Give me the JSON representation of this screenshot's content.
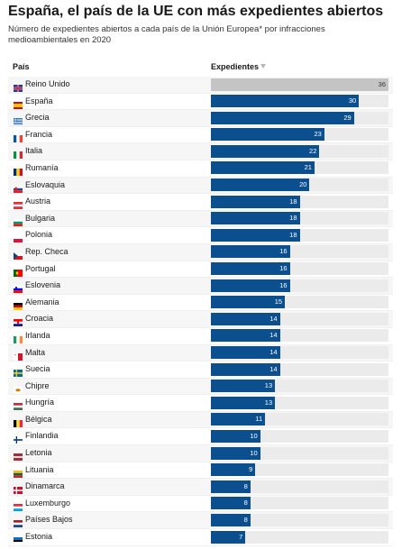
{
  "title": "España, el país de la UE con más expedientes abiertos",
  "subtitle": "Número de expedientes abiertos a cada país de la Unión Europea* por infracciones medioambientales en 2020",
  "header": {
    "country": "País",
    "value": "Expedientes"
  },
  "colors": {
    "bar": "#0c4f8f",
    "first_bar": "#c4c4c4",
    "track": "#ebebeb"
  },
  "chart_data": {
    "type": "bar",
    "orientation": "horizontal",
    "categories": [
      "Reino Unido",
      "España",
      "Grecia",
      "Francia",
      "Italia",
      "Rumanía",
      "Eslovaquia",
      "Austria",
      "Bulgaria",
      "Polonia",
      "Rep. Checa",
      "Portugal",
      "Eslovenia",
      "Alemania",
      "Croacia",
      "Irlanda",
      "Malta",
      "Suecia",
      "Chipre",
      "Hungría",
      "Bélgica",
      "Finlandia",
      "Letonia",
      "Lituania",
      "Dinamarca",
      "Luxemburgo",
      "Países Bajos",
      "Estonia"
    ],
    "values": [
      36,
      30,
      29,
      23,
      22,
      21,
      20,
      18,
      18,
      18,
      16,
      16,
      16,
      15,
      14,
      14,
      14,
      14,
      13,
      13,
      11,
      10,
      10,
      9,
      8,
      8,
      8,
      7
    ],
    "xlim": [
      0,
      36
    ]
  },
  "flags": [
    "uk",
    "es",
    "gr",
    "fr",
    "it",
    "ro",
    "sk",
    "at",
    "bg",
    "pl",
    "cz",
    "pt",
    "si",
    "de",
    "hr",
    "ie",
    "mt",
    "se",
    "cy",
    "hu",
    "be",
    "fi",
    "lv",
    "lt",
    "dk",
    "lu",
    "nl",
    "ee"
  ]
}
